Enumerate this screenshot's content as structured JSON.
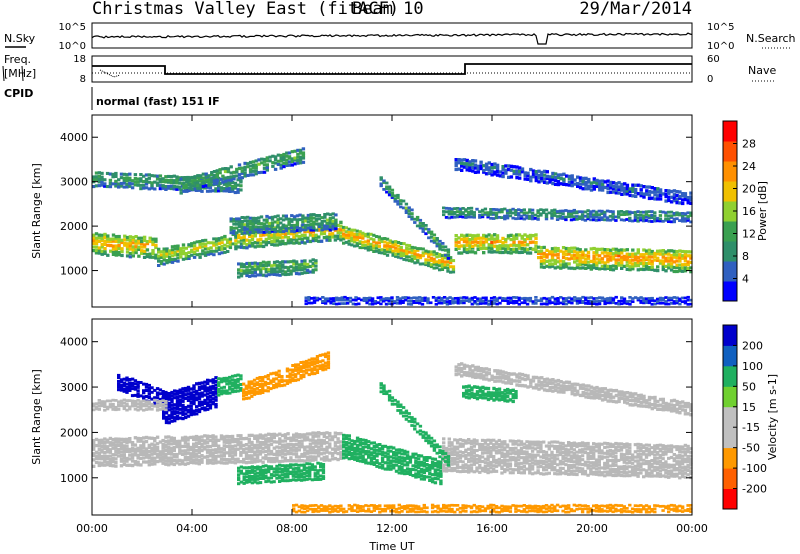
{
  "header": {
    "site": "Christmas Valley East (fitACF)",
    "beam": "Beam 10",
    "date": "29/Mar/2014"
  },
  "noise_panel": {
    "left_label": "N.Sky",
    "right_label": "N.Search",
    "left_ticks": [
      "10^5",
      "10^0"
    ],
    "right_ticks": [
      "10^5",
      "10^0"
    ]
  },
  "freq_panel": {
    "left_label_1": "Freq.",
    "left_label_2": "[MHz]",
    "right_label": "Nave",
    "left_ticks": [
      "18",
      "8"
    ],
    "right_ticks": [
      "60",
      "0"
    ]
  },
  "cpid_panel": {
    "label": "CPID",
    "text": "normal (fast) 151 IF"
  },
  "colors": {
    "power": [
      "#0000ff",
      "#3060c0",
      "#2f8f6a",
      "#3aa050",
      "#90d030",
      "#f0c000",
      "#ff9000",
      "#ff5000",
      "#ff0000"
    ],
    "velocity": [
      "#ff0000",
      "#ff6000",
      "#ff9900",
      "#c0c0c0",
      "#c0c0c0",
      "#70d030",
      "#20b060",
      "#1060c0",
      "#0000cc"
    ],
    "ground_scatter": "#b8b8b8"
  },
  "chart_data": [
    {
      "type": "heatmap",
      "title": "",
      "xlabel": "Time UT",
      "ylabel": "Slant Range [km]",
      "colorbar_label": "Power [dB]",
      "colorbar_ticks": [
        "28",
        "24",
        "20",
        "16",
        "12",
        "8",
        "4"
      ],
      "x_ticks": [
        "00:00",
        "04:00",
        "08:00",
        "12:00",
        "16:00",
        "20:00",
        "00:00"
      ],
      "y_ticks": [
        "1000",
        "2000",
        "3000",
        "4000"
      ],
      "xlim_hours": [
        0,
        24
      ],
      "ylim_km": [
        180,
        4500
      ],
      "features": [
        {
          "start": 0.0,
          "end": 2.6,
          "range_start": 1600,
          "range_end": 1500,
          "width": 500,
          "power": 22
        },
        {
          "start": 2.6,
          "end": 5.8,
          "range_start": 1300,
          "range_end": 1650,
          "width": 400,
          "power": 18
        },
        {
          "start": 5.8,
          "end": 10.0,
          "range_start": 1700,
          "range_end": 1900,
          "width": 450,
          "power": 20
        },
        {
          "start": 10.0,
          "end": 14.5,
          "range_start": 1800,
          "range_end": 1100,
          "width": 400,
          "power": 22
        },
        {
          "start": 14.5,
          "end": 17.8,
          "range_start": 1600,
          "range_end": 1600,
          "width": 450,
          "power": 22
        },
        {
          "start": 17.8,
          "end": 24.0,
          "range_start": 1300,
          "range_end": 1200,
          "width": 500,
          "power": 24
        },
        {
          "start": 0.0,
          "end": 6.0,
          "range_start": 3050,
          "range_end": 2900,
          "width": 350,
          "power": 12
        },
        {
          "start": 3.5,
          "end": 8.5,
          "range_start": 2900,
          "range_end": 3600,
          "width": 350,
          "power": 13
        },
        {
          "start": 5.5,
          "end": 9.8,
          "range_start": 2000,
          "range_end": 2100,
          "width": 400,
          "power": 12
        },
        {
          "start": 5.8,
          "end": 9.0,
          "range_start": 1000,
          "range_end": 1100,
          "width": 350,
          "power": 14
        },
        {
          "start": 11.5,
          "end": 14.3,
          "range_start": 3000,
          "range_end": 1300,
          "width": 250,
          "power": 12
        },
        {
          "start": 14.5,
          "end": 24.0,
          "range_start": 3400,
          "range_end": 2600,
          "width": 300,
          "power": 6
        },
        {
          "start": 14.0,
          "end": 24.0,
          "range_start": 2300,
          "range_end": 2200,
          "width": 250,
          "power": 10
        },
        {
          "start": 8.5,
          "end": 24.0,
          "range_start": 320,
          "range_end": 320,
          "width": 180,
          "power": 5
        }
      ]
    },
    {
      "type": "heatmap",
      "title": "",
      "xlabel": "Time UT",
      "ylabel": "Slant Range [km]",
      "colorbar_label": "Velocity [m s-1]",
      "colorbar_ticks": [
        "200",
        "100",
        "50",
        "15",
        "-15",
        "-50",
        "-100",
        "-200"
      ],
      "x_ticks": [
        "00:00",
        "04:00",
        "08:00",
        "12:00",
        "16:00",
        "20:00",
        "00:00"
      ],
      "y_ticks": [
        "1000",
        "2000",
        "3000",
        "4000"
      ],
      "xlim_hours": [
        0,
        24
      ],
      "ylim_km": [
        180,
        4500
      ],
      "features": [
        {
          "start": 0.0,
          "end": 10.0,
          "range_start": 1550,
          "range_end": 1700,
          "width": 650,
          "velocity": 0
        },
        {
          "start": 10.0,
          "end": 14.0,
          "range_start": 1700,
          "range_end": 1100,
          "width": 550,
          "velocity": 35
        },
        {
          "start": 14.0,
          "end": 24.0,
          "range_start": 1500,
          "range_end": 1350,
          "width": 750,
          "velocity": 0
        },
        {
          "start": 1.0,
          "end": 3.0,
          "range_start": 3100,
          "range_end": 2700,
          "width": 400,
          "velocity": 220
        },
        {
          "start": 2.8,
          "end": 5.0,
          "range_start": 2500,
          "range_end": 2900,
          "width": 700,
          "velocity": 220
        },
        {
          "start": 5.0,
          "end": 6.0,
          "range_start": 3000,
          "range_end": 3100,
          "width": 400,
          "velocity": 35
        },
        {
          "start": 6.0,
          "end": 9.5,
          "range_start": 2900,
          "range_end": 3600,
          "width": 400,
          "velocity": -70
        },
        {
          "start": 5.8,
          "end": 9.3,
          "range_start": 1050,
          "range_end": 1150,
          "width": 400,
          "velocity": 35
        },
        {
          "start": 11.5,
          "end": 14.3,
          "range_start": 3000,
          "range_end": 1300,
          "width": 250,
          "velocity": 35
        },
        {
          "start": 14.8,
          "end": 17.0,
          "range_start": 2900,
          "range_end": 2800,
          "width": 300,
          "velocity": 35
        },
        {
          "start": 14.5,
          "end": 24.0,
          "range_start": 3400,
          "range_end": 2500,
          "width": 300,
          "velocity": 0
        },
        {
          "start": 0.0,
          "end": 3.0,
          "range_start": 2600,
          "range_end": 2600,
          "width": 250,
          "velocity": 0
        },
        {
          "start": 8.0,
          "end": 24.0,
          "range_start": 320,
          "range_end": 320,
          "width": 180,
          "velocity": -70
        }
      ]
    }
  ]
}
